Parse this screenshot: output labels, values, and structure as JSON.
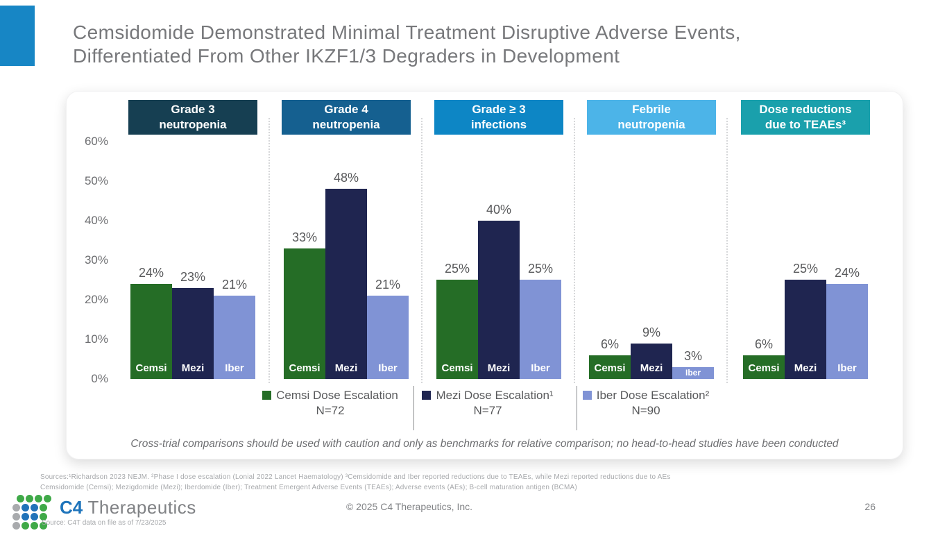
{
  "slide": {
    "title_line1": "Cemsidomide Demonstrated Minimal Treatment Disruptive Adverse Events,",
    "title_line2": "Differentiated From Other IKZF1/3 Degraders in Development",
    "caution": "Cross-trial comparisons should be used with caution and only as benchmarks for relative comparison; no head-to-head studies have been conducted",
    "accent_color": "#1786c5",
    "page_number": "26",
    "copyright": "© 2025 C4 Therapeutics, Inc.",
    "logo": {
      "c4": "C4",
      "therapeutics": "Therapeutics"
    },
    "footnotes": {
      "sources": "Sources:¹Richardson 2023 NEJM. ²Phase I dose escalation (Lonial 2022 Lancet Haematology) ³Cemsidomide and Iber reported reductions due to TEAEs, while Mezi reported reductions due to AEs",
      "abbreviations": "Cemsidomide (Cemsi); Mezigdomide (Mezi); Iberdomide (Iber); Treatment Emergent Adverse Events (TEAEs); Adverse events (AEs); B-cell maturation antigen (BCMA)",
      "data_source": "Source: C4T data on file as of 7/23/2025"
    }
  },
  "chart_data": {
    "type": "bar",
    "grid": false,
    "legend_position": "bottom",
    "ylim": [
      0,
      60
    ],
    "yticks": [
      "60%",
      "50%",
      "40%",
      "30%",
      "20%",
      "10%",
      "0%"
    ],
    "categories": [
      "Grade 3 neutropenia",
      "Grade 4 neutropenia",
      "Grade ≥ 3 infections",
      "Febrile neutropenia",
      "Dose reductions due to TEAEs³"
    ],
    "series": [
      {
        "name": "Cemsi Dose Escalation",
        "n": "N=72",
        "short": "Cemsi",
        "color": "#256d26"
      },
      {
        "name": "Mezi Dose Escalation¹",
        "n": "N=77",
        "short": "Mezi",
        "color": "#1f2550"
      },
      {
        "name": "Iber Dose Escalation²",
        "n": "N=90",
        "short": "Iber",
        "color": "#8093d5"
      }
    ],
    "panels": [
      {
        "header_line1": "Grade 3",
        "header_line2": "neutropenia",
        "header_color": "#163f52",
        "values": [
          24,
          23,
          21
        ]
      },
      {
        "header_line1": "Grade 4",
        "header_line2": "neutropenia",
        "header_color": "#156090",
        "values": [
          33,
          48,
          21
        ]
      },
      {
        "header_line1": "Grade ≥ 3",
        "header_line2": "infections",
        "header_color": "#0d86c5",
        "values": [
          25,
          40,
          25
        ]
      },
      {
        "header_line1": "Febrile",
        "header_line2": "neutropenia",
        "header_color": "#4cb4e8",
        "values": [
          6,
          9,
          3
        ]
      },
      {
        "header_line1": "Dose reductions",
        "header_line2": "due to TEAEs³",
        "header_color": "#1aa0ac",
        "values": [
          6,
          25,
          24
        ]
      }
    ]
  }
}
